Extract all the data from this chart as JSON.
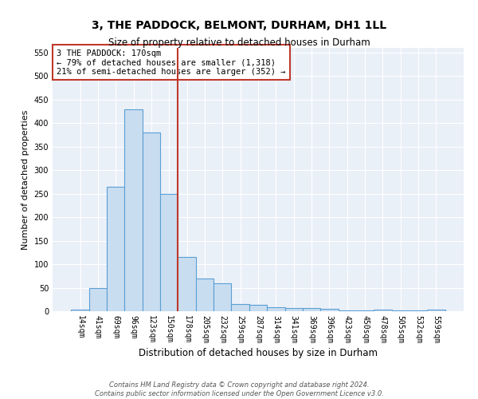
{
  "title": "3, THE PADDOCK, BELMONT, DURHAM, DH1 1LL",
  "subtitle": "Size of property relative to detached houses in Durham",
  "xlabel": "Distribution of detached houses by size in Durham",
  "ylabel": "Number of detached properties",
  "categories": [
    "14sqm",
    "41sqm",
    "69sqm",
    "96sqm",
    "123sqm",
    "150sqm",
    "178sqm",
    "205sqm",
    "232sqm",
    "259sqm",
    "287sqm",
    "314sqm",
    "341sqm",
    "369sqm",
    "396sqm",
    "423sqm",
    "450sqm",
    "478sqm",
    "505sqm",
    "532sqm",
    "559sqm"
  ],
  "values": [
    3,
    50,
    265,
    430,
    380,
    250,
    115,
    70,
    60,
    16,
    14,
    8,
    6,
    6,
    5,
    1,
    1,
    3,
    1,
    1,
    4
  ],
  "bar_color": "#c9ddf0",
  "bar_edge_color": "#5a9fd4",
  "vline_x": 5.5,
  "vline_color": "#c0392b",
  "annotation_text": "3 THE PADDOCK: 170sqm\n← 79% of detached houses are smaller (1,318)\n21% of semi-detached houses are larger (352) →",
  "annotation_box_color": "#ffffff",
  "annotation_box_edge": "#c0392b",
  "ylim": [
    0,
    560
  ],
  "yticks": [
    0,
    50,
    100,
    150,
    200,
    250,
    300,
    350,
    400,
    450,
    500,
    550
  ],
  "bg_color": "#eaf0f8",
  "footer_line1": "Contains HM Land Registry data © Crown copyright and database right 2024.",
  "footer_line2": "Contains public sector information licensed under the Open Government Licence v3.0.",
  "title_fontsize": 10,
  "subtitle_fontsize": 8.5,
  "xlabel_fontsize": 8.5,
  "ylabel_fontsize": 8,
  "tick_fontsize": 7,
  "annotation_fontsize": 7.5
}
